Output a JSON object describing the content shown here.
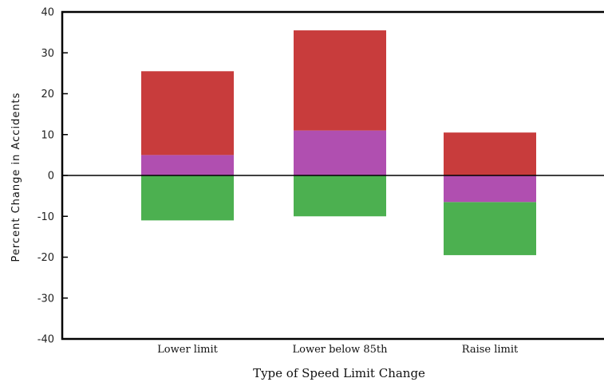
{
  "chart_data": {
    "type": "bar",
    "subtype": "floating-range-stacked",
    "title": "",
    "xlabel": "Type of Speed Limit Change",
    "ylabel": "Percent Change in Accidents",
    "ylim": [
      -40,
      40
    ],
    "yticks": [
      "40",
      "30",
      "20",
      "10",
      "0",
      "-10",
      "-20",
      "-30",
      "-40"
    ],
    "grid": false,
    "zero_line": true,
    "legend": "none",
    "categories": [
      "Lower limit",
      "Lower below 85th",
      "Raise limit"
    ],
    "series": [
      {
        "color": "#4cb050",
        "ranges": [
          [
            -11,
            0
          ],
          [
            -10,
            0
          ],
          [
            -19.5,
            -6.5
          ]
        ]
      },
      {
        "color": "#b04fb0",
        "ranges": [
          [
            0,
            5
          ],
          [
            0,
            11
          ],
          [
            -6.5,
            0
          ]
        ]
      },
      {
        "color": "#c83c3c",
        "ranges": [
          [
            5,
            25.5
          ],
          [
            11,
            35.5
          ],
          [
            0,
            10.5
          ]
        ]
      }
    ]
  }
}
